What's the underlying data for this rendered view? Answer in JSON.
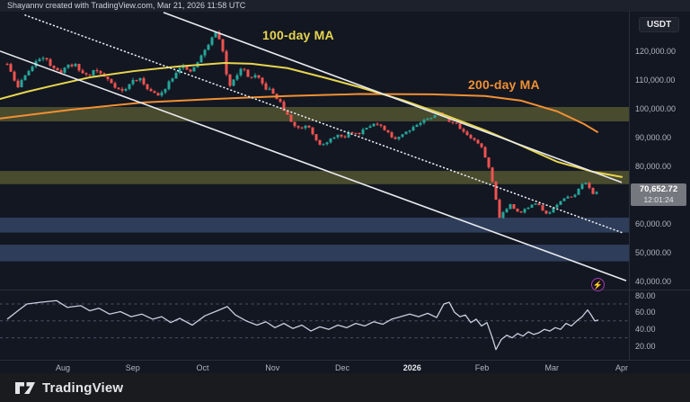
{
  "attribution": "Shayannv created with TradingView.com, Mar 21, 2026 11:58 UTC",
  "symbol_button": "USDT",
  "logo": {
    "text": "TradingView"
  },
  "annotations": {
    "ma100_label": "100-day MA",
    "ma200_label": "200-day MA",
    "flash_glyph": "⚡"
  },
  "price_badge": {
    "price": "70,652.72",
    "countdown": "12:01:24",
    "value": 70652.72
  },
  "colors": {
    "background": "#131722",
    "candle_up": "#26a69a",
    "candle_down": "#ef5350",
    "ma100": "#e7d54f",
    "ma200": "#f09033",
    "trendline": "#e8eaee",
    "rsi_line": "#c9cfdf",
    "olive_zone": "#9a9a40",
    "blue_zone": "#6488c8",
    "axis_text": "#b2b5be",
    "separator": "#2a2e39",
    "flash_purple": "#a43cb6"
  },
  "price_axis": {
    "ticks": [
      {
        "value": 120000,
        "label": "120,000.00"
      },
      {
        "value": 110000,
        "label": "110,000.00"
      },
      {
        "value": 100000,
        "label": "100,000.00"
      },
      {
        "value": 90000,
        "label": "90,000.00"
      },
      {
        "value": 80000,
        "label": "80,000.00"
      },
      {
        "value": 60000,
        "label": "60,000.00"
      },
      {
        "value": 50000,
        "label": "50,000.00"
      },
      {
        "value": 40000,
        "label": "40,000.00"
      }
    ]
  },
  "rsi_axis": {
    "ticks": [
      {
        "value": 80,
        "label": "80.00"
      },
      {
        "value": 60,
        "label": "60.00"
      },
      {
        "value": 40,
        "label": "40.00"
      },
      {
        "value": 20,
        "label": "20.00"
      }
    ]
  },
  "time_axis": [
    {
      "label": "Aug",
      "emphasis": false
    },
    {
      "label": "Sep",
      "emphasis": false
    },
    {
      "label": "Oct",
      "emphasis": false
    },
    {
      "label": "Nov",
      "emphasis": false
    },
    {
      "label": "Dec",
      "emphasis": false
    },
    {
      "label": "2026",
      "emphasis": true
    },
    {
      "label": "Feb",
      "emphasis": false
    },
    {
      "label": "Mar",
      "emphasis": false
    },
    {
      "label": "Apr",
      "emphasis": false
    }
  ],
  "chart_data": {
    "type": "candlestick",
    "title": "Crypto daily chart with 100/200-day MAs, descending channel and RSI",
    "last_price": 70652.72,
    "price_pane": {
      "ylim": [
        37200,
        134000
      ],
      "price_path": [
        [
          8,
          115500
        ],
        [
          14,
          110800
        ],
        [
          20,
          107500
        ],
        [
          28,
          112000
        ],
        [
          36,
          114500
        ],
        [
          44,
          117500
        ],
        [
          50,
          118600
        ],
        [
          58,
          114000
        ],
        [
          66,
          112500
        ],
        [
          74,
          114800
        ],
        [
          82,
          115600
        ],
        [
          90,
          112800
        ],
        [
          98,
          111500
        ],
        [
          106,
          113800
        ],
        [
          114,
          111500
        ],
        [
          122,
          109800
        ],
        [
          130,
          107200
        ],
        [
          138,
          105800
        ],
        [
          146,
          109500
        ],
        [
          154,
          110600
        ],
        [
          162,
          108000
        ],
        [
          170,
          105500
        ],
        [
          178,
          104200
        ],
        [
          186,
          108500
        ],
        [
          194,
          112000
        ],
        [
          202,
          115600
        ],
        [
          210,
          112000
        ],
        [
          218,
          115200
        ],
        [
          226,
          119200
        ],
        [
          234,
          123600
        ],
        [
          242,
          127200
        ],
        [
          248,
          119500
        ],
        [
          254,
          107500
        ],
        [
          262,
          111500
        ],
        [
          270,
          114200
        ],
        [
          278,
          110500
        ],
        [
          286,
          111200
        ],
        [
          294,
          107500
        ],
        [
          302,
          106000
        ],
        [
          310,
          103000
        ],
        [
          318,
          98500
        ],
        [
          326,
          94500
        ],
        [
          334,
          93000
        ],
        [
          342,
          94800
        ],
        [
          350,
          90500
        ],
        [
          358,
          87000
        ],
        [
          366,
          88500
        ],
        [
          374,
          91200
        ],
        [
          382,
          89500
        ],
        [
          390,
          92200
        ],
        [
          398,
          91000
        ],
        [
          406,
          93500
        ],
        [
          414,
          94800
        ],
        [
          422,
          94000
        ],
        [
          430,
          92000
        ],
        [
          438,
          89500
        ],
        [
          446,
          90800
        ],
        [
          454,
          92500
        ],
        [
          462,
          94200
        ],
        [
          470,
          95600
        ],
        [
          478,
          96800
        ],
        [
          486,
          98600
        ],
        [
          494,
          97500
        ],
        [
          502,
          95500
        ],
        [
          510,
          94000
        ],
        [
          518,
          91500
        ],
        [
          526,
          89500
        ],
        [
          534,
          87500
        ],
        [
          540,
          83500
        ],
        [
          546,
          77500
        ],
        [
          552,
          68500
        ],
        [
          556,
          62500
        ],
        [
          562,
          64800
        ],
        [
          568,
          66800
        ],
        [
          574,
          65000
        ],
        [
          580,
          64000
        ],
        [
          586,
          65600
        ],
        [
          592,
          66500
        ],
        [
          598,
          67200
        ],
        [
          604,
          64800
        ],
        [
          610,
          63500
        ],
        [
          616,
          65500
        ],
        [
          622,
          67300
        ],
        [
          628,
          68500
        ],
        [
          634,
          69500
        ],
        [
          640,
          70500
        ],
        [
          646,
          72800
        ],
        [
          652,
          74600
        ],
        [
          656,
          72500
        ],
        [
          660,
          70800
        ],
        [
          666,
          70652
        ]
      ],
      "ma100": [
        [
          0,
          103400
        ],
        [
          30,
          105900
        ],
        [
          60,
          108100
        ],
        [
          100,
          110900
        ],
        [
          150,
          113100
        ],
        [
          200,
          114700
        ],
        [
          250,
          115900
        ],
        [
          280,
          115600
        ],
        [
          320,
          114100
        ],
        [
          360,
          110900
        ],
        [
          400,
          107500
        ],
        [
          450,
          102800
        ],
        [
          490,
          98400
        ],
        [
          540,
          92500
        ],
        [
          580,
          87200
        ],
        [
          620,
          81600
        ],
        [
          660,
          78100
        ],
        [
          692,
          76300
        ]
      ],
      "ma200": [
        [
          0,
          96600
        ],
        [
          80,
          99700
        ],
        [
          160,
          102200
        ],
        [
          240,
          103400
        ],
        [
          320,
          104400
        ],
        [
          400,
          105100
        ],
        [
          480,
          105000
        ],
        [
          540,
          104400
        ],
        [
          580,
          102800
        ],
        [
          620,
          99100
        ],
        [
          650,
          94700
        ],
        [
          665,
          91900
        ]
      ],
      "trendlines": [
        {
          "name": "channel-upper",
          "style": "solid",
          "points": [
            [
              182,
              133400
            ],
            [
              692,
              74400
            ]
          ]
        },
        {
          "name": "channel-lower",
          "style": "solid",
          "points": [
            [
              0,
              120000
            ],
            [
              697,
              40300
            ]
          ]
        },
        {
          "name": "inner-dotted",
          "style": "dotted",
          "points": [
            [
              28,
              132500
            ],
            [
              693,
              56900
            ]
          ]
        }
      ],
      "zones": [
        {
          "name": "olive_zone_1",
          "price_from": 95600,
          "price_to": 100600,
          "color": "#9a9a40",
          "opacity": 0.4
        },
        {
          "name": "olive_zone_2",
          "price_from": 73800,
          "price_to": 78400,
          "color": "#9a9a40",
          "opacity": 0.4
        },
        {
          "name": "blue_zone_1",
          "price_from": 57000,
          "price_to": 62200,
          "color": "#6488c8",
          "opacity": 0.34
        },
        {
          "name": "blue_zone_2",
          "price_from": 47000,
          "price_to": 52800,
          "color": "#6488c8",
          "opacity": 0.34
        }
      ],
      "flash_marker": {
        "x": 666,
        "price": 38700
      }
    },
    "rsi_pane": {
      "ylim": [
        4,
        86
      ],
      "dashed_levels": [
        70,
        50,
        30
      ],
      "path": [
        [
          8,
          52
        ],
        [
          20,
          62
        ],
        [
          30,
          70
        ],
        [
          45,
          72
        ],
        [
          63,
          74
        ],
        [
          75,
          66
        ],
        [
          90,
          68
        ],
        [
          100,
          62
        ],
        [
          110,
          65
        ],
        [
          122,
          58
        ],
        [
          134,
          61
        ],
        [
          146,
          55
        ],
        [
          158,
          58
        ],
        [
          170,
          52
        ],
        [
          180,
          55
        ],
        [
          190,
          48
        ],
        [
          200,
          53
        ],
        [
          214,
          45
        ],
        [
          228,
          56
        ],
        [
          242,
          62
        ],
        [
          253,
          67
        ],
        [
          262,
          57
        ],
        [
          274,
          50
        ],
        [
          286,
          45
        ],
        [
          296,
          49
        ],
        [
          306,
          42
        ],
        [
          316,
          47
        ],
        [
          326,
          41
        ],
        [
          336,
          45
        ],
        [
          346,
          38
        ],
        [
          356,
          43
        ],
        [
          366,
          40
        ],
        [
          376,
          45
        ],
        [
          386,
          42
        ],
        [
          396,
          47
        ],
        [
          406,
          44
        ],
        [
          416,
          49
        ],
        [
          426,
          46
        ],
        [
          436,
          52
        ],
        [
          446,
          55
        ],
        [
          456,
          58
        ],
        [
          466,
          55
        ],
        [
          476,
          59
        ],
        [
          486,
          54
        ],
        [
          494,
          70
        ],
        [
          500,
          72
        ],
        [
          506,
          60
        ],
        [
          512,
          55
        ],
        [
          518,
          57
        ],
        [
          524,
          48
        ],
        [
          530,
          52
        ],
        [
          536,
          44
        ],
        [
          542,
          48
        ],
        [
          548,
          30
        ],
        [
          552,
          16
        ],
        [
          558,
          28
        ],
        [
          564,
          33
        ],
        [
          570,
          30
        ],
        [
          576,
          35
        ],
        [
          582,
          32
        ],
        [
          588,
          37
        ],
        [
          594,
          34
        ],
        [
          600,
          36
        ],
        [
          606,
          40
        ],
        [
          612,
          38
        ],
        [
          618,
          42
        ],
        [
          624,
          40
        ],
        [
          630,
          47
        ],
        [
          636,
          44
        ],
        [
          642,
          50
        ],
        [
          648,
          55
        ],
        [
          654,
          63
        ],
        [
          658,
          57
        ],
        [
          662,
          50
        ],
        [
          666,
          51
        ]
      ]
    }
  }
}
